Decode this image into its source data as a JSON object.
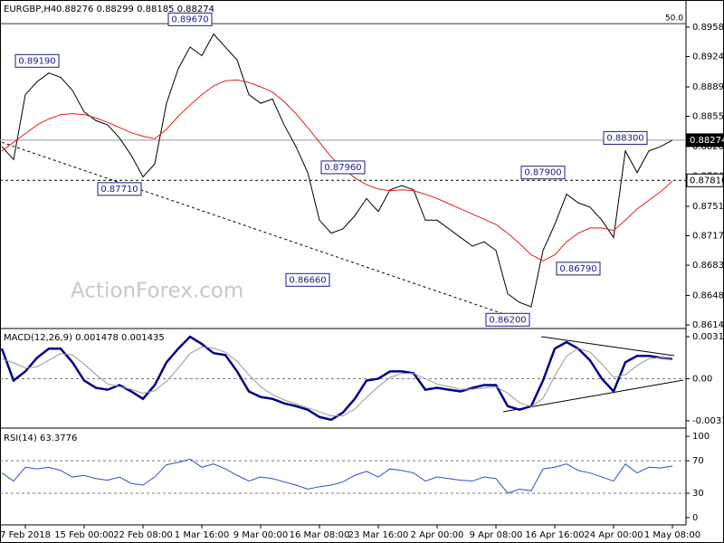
{
  "chart_data": [
    {
      "type": "line",
      "title": "EURGBP,H4",
      "subtitle": "0.88276 0.88299 0.88185 0.88274",
      "watermark": "ActionForex.com",
      "series": [
        {
          "color": "#000000",
          "values": [
            0.882,
            0.8805,
            0.888,
            0.8895,
            0.8905,
            0.89,
            0.8885,
            0.886,
            0.885,
            0.8845,
            0.883,
            0.881,
            0.8785,
            0.88,
            0.887,
            0.891,
            0.8935,
            0.8925,
            0.895,
            0.8935,
            0.892,
            0.888,
            0.887,
            0.8875,
            0.8845,
            0.882,
            0.879,
            0.8735,
            0.872,
            0.8725,
            0.874,
            0.876,
            0.8745,
            0.877,
            0.8775,
            0.877,
            0.8735,
            0.8735,
            0.8725,
            0.8715,
            0.8705,
            0.871,
            0.87,
            0.865,
            0.864,
            0.8635,
            0.87,
            0.873,
            0.8765,
            0.8755,
            0.875,
            0.8735,
            0.8715,
            0.8815,
            0.879,
            0.8815,
            0.882,
            0.88274
          ]
        },
        {
          "color": "#e0201e",
          "values": [
            0.8815,
            0.8825,
            0.8835,
            0.8845,
            0.8852,
            0.8857,
            0.8858,
            0.8857,
            0.8853,
            0.8848,
            0.8842,
            0.8836,
            0.8832,
            0.8829,
            0.884,
            0.8855,
            0.8868,
            0.888,
            0.889,
            0.8896,
            0.8897,
            0.8894,
            0.8889,
            0.8883,
            0.8872,
            0.8858,
            0.8842,
            0.8825,
            0.8808,
            0.8795,
            0.8784,
            0.8776,
            0.8771,
            0.8769,
            0.877,
            0.8769,
            0.8765,
            0.876,
            0.8754,
            0.8748,
            0.8742,
            0.8736,
            0.873,
            0.872,
            0.8708,
            0.8695,
            0.8688,
            0.8695,
            0.871,
            0.872,
            0.8726,
            0.8726,
            0.8723,
            0.8735,
            0.8748,
            0.8758,
            0.8768,
            0.878
          ]
        }
      ],
      "ylim": [
        0.86109,
        0.89841
      ],
      "yticks": [
        {
          "value": 0.8958,
          "label": "0.89580"
        },
        {
          "value": 0.8924,
          "label": "0.89240"
        },
        {
          "value": 0.8889,
          "label": "0.88890"
        },
        {
          "value": 0.8855,
          "label": "0.88550"
        },
        {
          "value": 0.882,
          "label": "0.88200"
        },
        {
          "value": 0.8786,
          "label": "0.87860"
        },
        {
          "value": 0.8751,
          "label": "0.87510"
        },
        {
          "value": 0.8717,
          "label": "0.87170"
        },
        {
          "value": 0.8683,
          "label": "0.86830"
        },
        {
          "value": 0.8648,
          "label": "0.86480"
        },
        {
          "value": 0.8614,
          "label": "0.86140"
        }
      ],
      "annotations": [
        {
          "value": 0.8919,
          "label": "0.89190",
          "index": 3
        },
        {
          "value": 0.8967,
          "label": "0.89670",
          "index": 16
        },
        {
          "value": 0.8771,
          "label": "0.87710",
          "index": 10
        },
        {
          "value": 0.8796,
          "label": "0.87960",
          "index": 29
        },
        {
          "value": 0.8666,
          "label": "0.86660",
          "index": 26
        },
        {
          "value": 0.862,
          "label": "0.86200",
          "index": 43
        },
        {
          "value": 0.879,
          "label": "0.87900",
          "index": 46
        },
        {
          "value": 0.8679,
          "label": "0.86790",
          "index": 49
        },
        {
          "value": 0.883,
          "label": "0.88300",
          "index": 53
        }
      ],
      "levels": [
        {
          "value": 0.88274,
          "label": "0.88274"
        },
        {
          "value": 0.8781,
          "label": "0.87810"
        }
      ],
      "fib": {
        "value": 0.8962,
        "label": "50.0"
      },
      "trendline": {
        "x": [
          0,
          43
        ],
        "y": [
          0.8825,
          0.8625
        ]
      }
    },
    {
      "type": "line",
      "title": "MACD(12,26,9) 0.001478 0.001435",
      "series": [
        {
          "color": "#00008b",
          "values": [
            0.00227,
            -0.00014,
            0.00055,
            0.00158,
            0.00227,
            0.00227,
            0.00124,
            -0.00014,
            -0.00069,
            -0.00083,
            -0.00048,
            -0.00096,
            -0.00152,
            -0.00048,
            0.00124,
            0.00227,
            0.00317,
            0.00262,
            0.00193,
            0.00179,
            0.00055,
            -0.00096,
            -0.00138,
            -0.00152,
            -0.00186,
            -0.00207,
            -0.00234,
            -0.00289,
            -0.0031,
            -0.00255,
            -0.00152,
            -0.00014,
            0,
            0.00055,
            0.00055,
            0.00041,
            -0.00083,
            -0.00069,
            -0.00083,
            -0.00096,
            -0.00069,
            -0.00048,
            -0.00048,
            -0.00207,
            -0.00234,
            -0.00207,
            -0.00014,
            0.00227,
            0.00276,
            0.00227,
            0.00138,
            0,
            -0.00096,
            0.00124,
            0.00172,
            0.00172,
            0.00158,
            0.001478
          ]
        },
        {
          "color": "#999999",
          "values": [
            0.0015,
            0.0012,
            0.0008,
            0.0009,
            0.0014,
            0.0019,
            0.0018,
            0.0011,
            0.0003,
            -0.0004,
            -0.0006,
            -0.0008,
            -0.0011,
            -0.0009,
            -0.0002,
            0.0008,
            0.0019,
            0.0024,
            0.0023,
            0.002,
            0.0013,
            0.0003,
            -0.0006,
            -0.0012,
            -0.0016,
            -0.0019,
            -0.0022,
            -0.0025,
            -0.0028,
            -0.0028,
            -0.0023,
            -0.0014,
            -0.0006,
            0.0001,
            0.0004,
            0.0004,
            0,
            -0.0004,
            -0.0006,
            -0.0008,
            -0.0008,
            -0.0007,
            -0.0006,
            -0.0011,
            -0.0018,
            -0.0021,
            -0.0015,
            0.0002,
            0.0017,
            0.0023,
            0.002,
            0.0011,
            0.0001,
            0.0003,
            0.001,
            0.0015,
            0.0016,
            0.001435
          ]
        }
      ],
      "ylim": [
        -0.00352,
        0.00365
      ],
      "yticks": [
        0.003169,
        {
          "value": 0,
          "label": "0.00"
        },
        -0.003177
      ],
      "reference_lines": [
        0
      ]
    },
    {
      "type": "line",
      "title": "RSI(14) 63.3776",
      "series": [
        {
          "color": "#2f4fc4",
          "values": [
            55,
            45,
            62,
            60,
            62,
            58,
            50,
            52,
            48,
            46,
            50,
            42,
            40,
            50,
            65,
            68,
            72,
            62,
            66,
            60,
            52,
            45,
            50,
            48,
            44,
            40,
            35,
            38,
            40,
            44,
            52,
            57,
            50,
            60,
            58,
            55,
            45,
            50,
            48,
            46,
            45,
            50,
            48,
            30,
            35,
            33,
            60,
            62,
            66,
            58,
            55,
            50,
            45,
            66,
            55,
            62,
            61,
            63.3776
          ]
        }
      ],
      "ylim": [
        -9,
        108
      ],
      "yticks": [
        0,
        30,
        70,
        100
      ],
      "reference_lines": [
        30,
        70
      ],
      "categories": [
        null,
        null,
        "7 Feb 2018",
        null,
        null,
        null,
        null,
        "15 Feb 00:00",
        null,
        null,
        null,
        null,
        "22 Feb 08:00",
        null,
        null,
        null,
        null,
        "1 Mar 16:00",
        null,
        null,
        null,
        null,
        "9 Mar 00:00",
        null,
        null,
        null,
        null,
        "16 Mar 08:00",
        null,
        null,
        null,
        null,
        "23 Mar 16:00",
        null,
        null,
        null,
        null,
        "2 Apr 00:00",
        null,
        null,
        null,
        null,
        "9 Apr 08:00",
        null,
        null,
        null,
        null,
        "16 Apr 16:00",
        null,
        null,
        null,
        null,
        "24 Apr 00:00",
        null,
        null,
        null,
        null,
        "1 May 08:00"
      ]
    }
  ]
}
